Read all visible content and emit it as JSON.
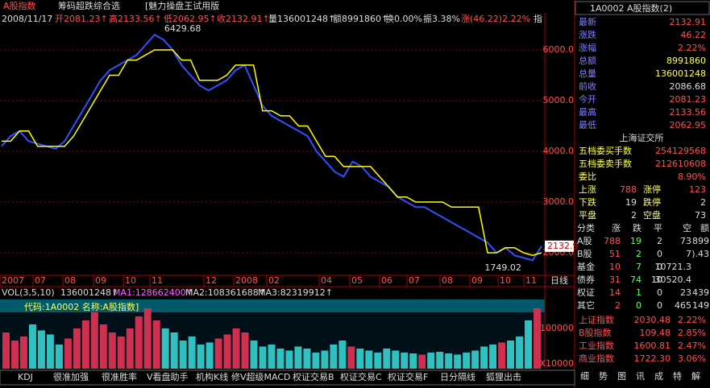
{
  "window": {
    "title": "A股指数",
    "menus": [
      "筹码超跌综合选",
      "[魅力操盘王试用版"
    ]
  },
  "info": {
    "date": "2008/11/17",
    "items": [
      "开2081.23↑",
      "高2133.56↑",
      "低2062.95↑",
      "收2132.91↑",
      "量136001248↑",
      "额8991860↑",
      "换0.00%",
      "振3.38%",
      "涨(46.22)2.22%",
      "指"
    ]
  },
  "price_chart": {
    "ylim": [
      1556,
      6476
    ],
    "yticks": [
      {
        "value": 2000,
        "label": "2000.0"
      },
      {
        "value": 3000,
        "label": "3000.0"
      },
      {
        "value": 4000,
        "label": "4000.0"
      },
      {
        "value": 5000,
        "label": "5000.0"
      },
      {
        "value": 6000,
        "label": "6000.0"
      }
    ],
    "closes": [
      4100,
      4300,
      4400,
      4200,
      4150,
      4100,
      4050,
      4200,
      4500,
      4800,
      5100,
      5400,
      5600,
      5700,
      5800,
      5900,
      6100,
      6300,
      6200,
      6000,
      5700,
      5500,
      5300,
      5200,
      5300,
      5400,
      5600,
      5700,
      5300,
      4900,
      4700,
      4600,
      4500,
      4400,
      4300,
      4000,
      3800,
      3600,
      3500,
      3800,
      3700,
      3500,
      3400,
      3300,
      3100,
      3000,
      2900,
      2900,
      2800,
      2700,
      2600,
      2500,
      2400,
      2300,
      2200,
      2000,
      2100,
      1950,
      1900,
      1850,
      2130
    ],
    "trend": [
      4200,
      4200,
      4400,
      4400,
      4100,
      4100,
      4100,
      4100,
      4300,
      4600,
      4900,
      5200,
      5500,
      5500,
      5800,
      5800,
      5900,
      6000,
      6000,
      6000,
      5800,
      5800,
      5400,
      5400,
      5400,
      5500,
      5700,
      5700,
      5700,
      4800,
      4800,
      4700,
      4700,
      4500,
      4500,
      4200,
      3900,
      3900,
      3700,
      3700,
      3700,
      3700,
      3500,
      3300,
      3100,
      3100,
      3000,
      3000,
      3000,
      3000,
      2900,
      2900,
      2900,
      2900,
      2000,
      2000,
      2100,
      2100,
      2000,
      1950,
      2000
    ],
    "high_label": "6429.68",
    "low_label": "1749.02",
    "last_label": "2132.9",
    "dates": [
      "2007",
      "07",
      "08",
      "09",
      "10",
      "11",
      "12",
      "2008",
      "02",
      "04",
      "05",
      "06",
      "07",
      "08",
      "09",
      "10",
      "11"
    ],
    "period": "日线"
  },
  "volume_chart": {
    "legend": [
      "VOL(3,5,10)",
      "136001248↑",
      "MA1:128662400↑",
      "MA2:108361688↑",
      "MA3:82319912↑"
    ],
    "caption": "代码:1A0002 名称:A股指数]",
    "ylim": [
      0,
      172000
    ],
    "yticks": [
      100000
    ],
    "unit": "X10000",
    "values": [
      90000,
      70000,
      80000,
      110000,
      95000,
      85000,
      60000,
      75000,
      100000,
      120000,
      140000,
      110000,
      90000,
      80000,
      100000,
      130000,
      150000,
      120000,
      100000,
      90000,
      70000,
      80000,
      60000,
      65000,
      75000,
      85000,
      100000,
      90000,
      70000,
      55000,
      60000,
      50000,
      45000,
      55000,
      50000,
      40000,
      45000,
      60000,
      70000,
      55000,
      50000,
      45000,
      40000,
      50000,
      45000,
      40000,
      38000,
      35000,
      40000,
      42000,
      38000,
      35000,
      40000,
      45000,
      55000,
      60000,
      65000,
      70000,
      80000,
      120000,
      150000
    ]
  },
  "tabs": [
    "KDJ",
    "很准加强",
    "很准胜率",
    "V看盘助手",
    "机构K线",
    "修V超级MACD",
    "权证交易B",
    "权证交易C",
    "权证交易F",
    "日分隔线",
    "狐狸出击"
  ],
  "quote": {
    "header": "1A0002 A股指数(2)",
    "rows": [
      {
        "label": "最新",
        "value": "2132.91"
      },
      {
        "label": "涨跌",
        "value": "46.22"
      },
      {
        "label": "涨幅",
        "value": "2.22%"
      },
      {
        "label": "总额",
        "value": "8991860"
      },
      {
        "label": "总量",
        "value": "136001248"
      },
      {
        "label": "前收",
        "value": "2086.68"
      },
      {
        "label": "今开",
        "value": "2081.23"
      },
      {
        "label": "最高",
        "value": "2133.56"
      },
      {
        "label": "最低",
        "value": "2062.95"
      }
    ],
    "exchange": "上海证交所",
    "orders": [
      {
        "label": "五档委买手数",
        "value": "254129568"
      },
      {
        "label": "五档委卖手数",
        "value": "212610608"
      },
      {
        "label": "委比",
        "value": "8.90%"
      }
    ],
    "breadth": [
      [
        "上涨",
        "788",
        "涨停",
        "123"
      ],
      [
        "下跌",
        "19",
        "跌停",
        "2"
      ],
      [
        "平盘",
        "2",
        "空盘",
        "73"
      ]
    ],
    "table_header": [
      "分类",
      "涨",
      "跌",
      "平",
      "空",
      "额"
    ],
    "table": [
      [
        "A股",
        "788",
        "19",
        "2",
        "73",
        "899"
      ],
      [
        "B股",
        "51",
        "2",
        "0",
        "7",
        ").43"
      ],
      [
        "基金",
        "10",
        "7",
        "0",
        "10721.3",
        ""
      ],
      [
        "债券",
        "31",
        "74",
        "10",
        "30520.4",
        ""
      ],
      [
        "权证",
        "14",
        "1",
        "0",
        "23",
        "439"
      ],
      [
        "其它",
        "2",
        "0",
        "0",
        "465",
        "149"
      ]
    ],
    "indices": [
      [
        "上证指数",
        "2030.48",
        "2.22%"
      ],
      [
        "B股指数",
        "109.48",
        "2.85%"
      ],
      [
        "工业指数",
        "1600.81",
        "2.47%"
      ],
      [
        "商业指数",
        "1722.30",
        "3.06%"
      ]
    ],
    "bottom": [
      "细",
      "势",
      "图",
      "讯",
      "成",
      "特",
      "解"
    ]
  }
}
